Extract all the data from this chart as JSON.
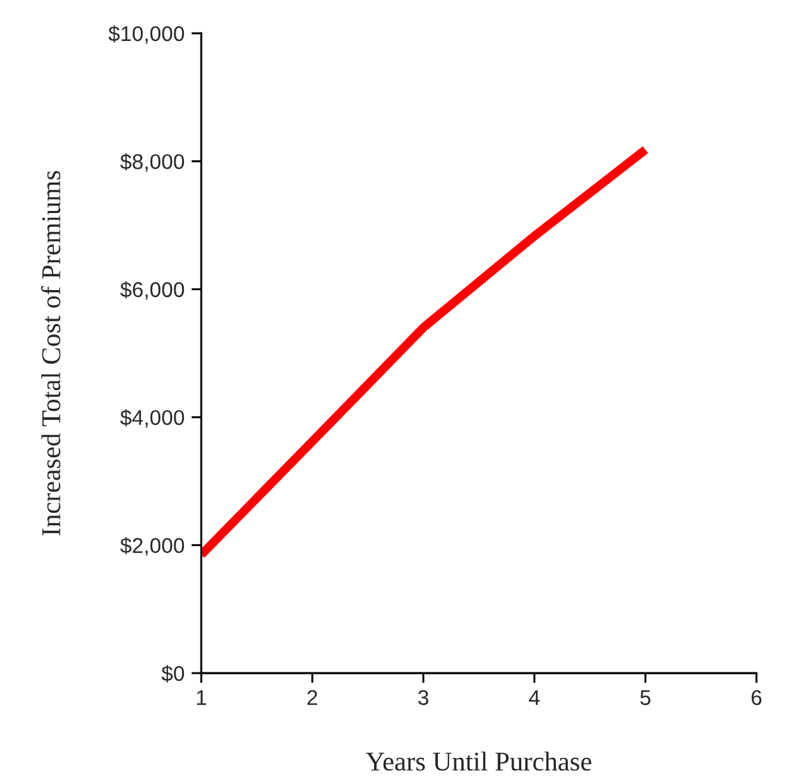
{
  "chart_data": {
    "type": "line",
    "xlabel": "Years Until Purchase",
    "ylabel": "Increased Total Cost of Premiums",
    "x": [
      1,
      2,
      3,
      4,
      5
    ],
    "series": [
      {
        "color": "#ff0000",
        "values": [
          1850,
          3620,
          5400,
          6830,
          8180
        ]
      }
    ],
    "xlim": [
      1,
      6
    ],
    "xticks": [
      1,
      2,
      3,
      4,
      5,
      6
    ],
    "ylim": [
      0,
      10000
    ],
    "yticks": [
      {
        "value": 0,
        "label": "$0"
      },
      {
        "value": 2000,
        "label": "$2,000"
      },
      {
        "value": 4000,
        "label": "$4,000"
      },
      {
        "value": 6000,
        "label": "$6,000"
      },
      {
        "value": 8000,
        "label": "$8,000"
      },
      {
        "value": 10000,
        "label": "$10,000"
      }
    ],
    "grid": false,
    "marker": "none",
    "line_style": "solid"
  }
}
